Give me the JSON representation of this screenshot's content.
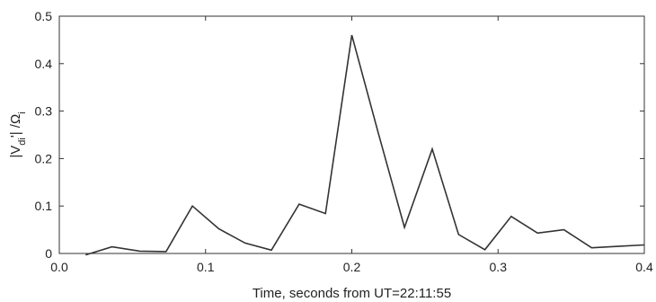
{
  "chart_data": {
    "type": "line",
    "xlabel": "Time, seconds from UT=22:11:55",
    "ylabel": {
      "parts": [
        "|V",
        "di",
        "'| /Ω",
        "i"
      ]
    },
    "xlim": [
      0.0,
      0.4
    ],
    "ylim": [
      0,
      0.5
    ],
    "xticks": [
      0.0,
      0.1,
      0.2,
      0.3,
      0.4
    ],
    "xtick_labels": [
      "0.0",
      "0.1",
      "0.2",
      "0.3",
      "0.4"
    ],
    "yticks": [
      0,
      0.1,
      0.2,
      0.3,
      0.4,
      0.5
    ],
    "ytick_labels": [
      "0",
      "0.1",
      "0.2",
      "0.3",
      "0.4",
      "0.5"
    ],
    "grid": false,
    "series": [
      {
        "x": [
          0.018,
          0.036,
          0.055,
          0.073,
          0.091,
          0.109,
          0.127,
          0.145,
          0.164,
          0.182,
          0.2,
          0.218,
          0.236,
          0.255,
          0.273,
          0.291,
          0.309,
          0.327,
          0.345,
          0.364,
          0.382,
          0.4
        ],
        "y": [
          -0.003,
          0.014,
          0.005,
          0.004,
          0.1,
          0.052,
          0.022,
          0.007,
          0.104,
          0.084,
          0.46,
          0.255,
          0.055,
          0.22,
          0.04,
          0.008,
          0.078,
          0.043,
          0.05,
          0.012,
          0.015,
          0.018
        ],
        "color": "#333333"
      }
    ]
  }
}
